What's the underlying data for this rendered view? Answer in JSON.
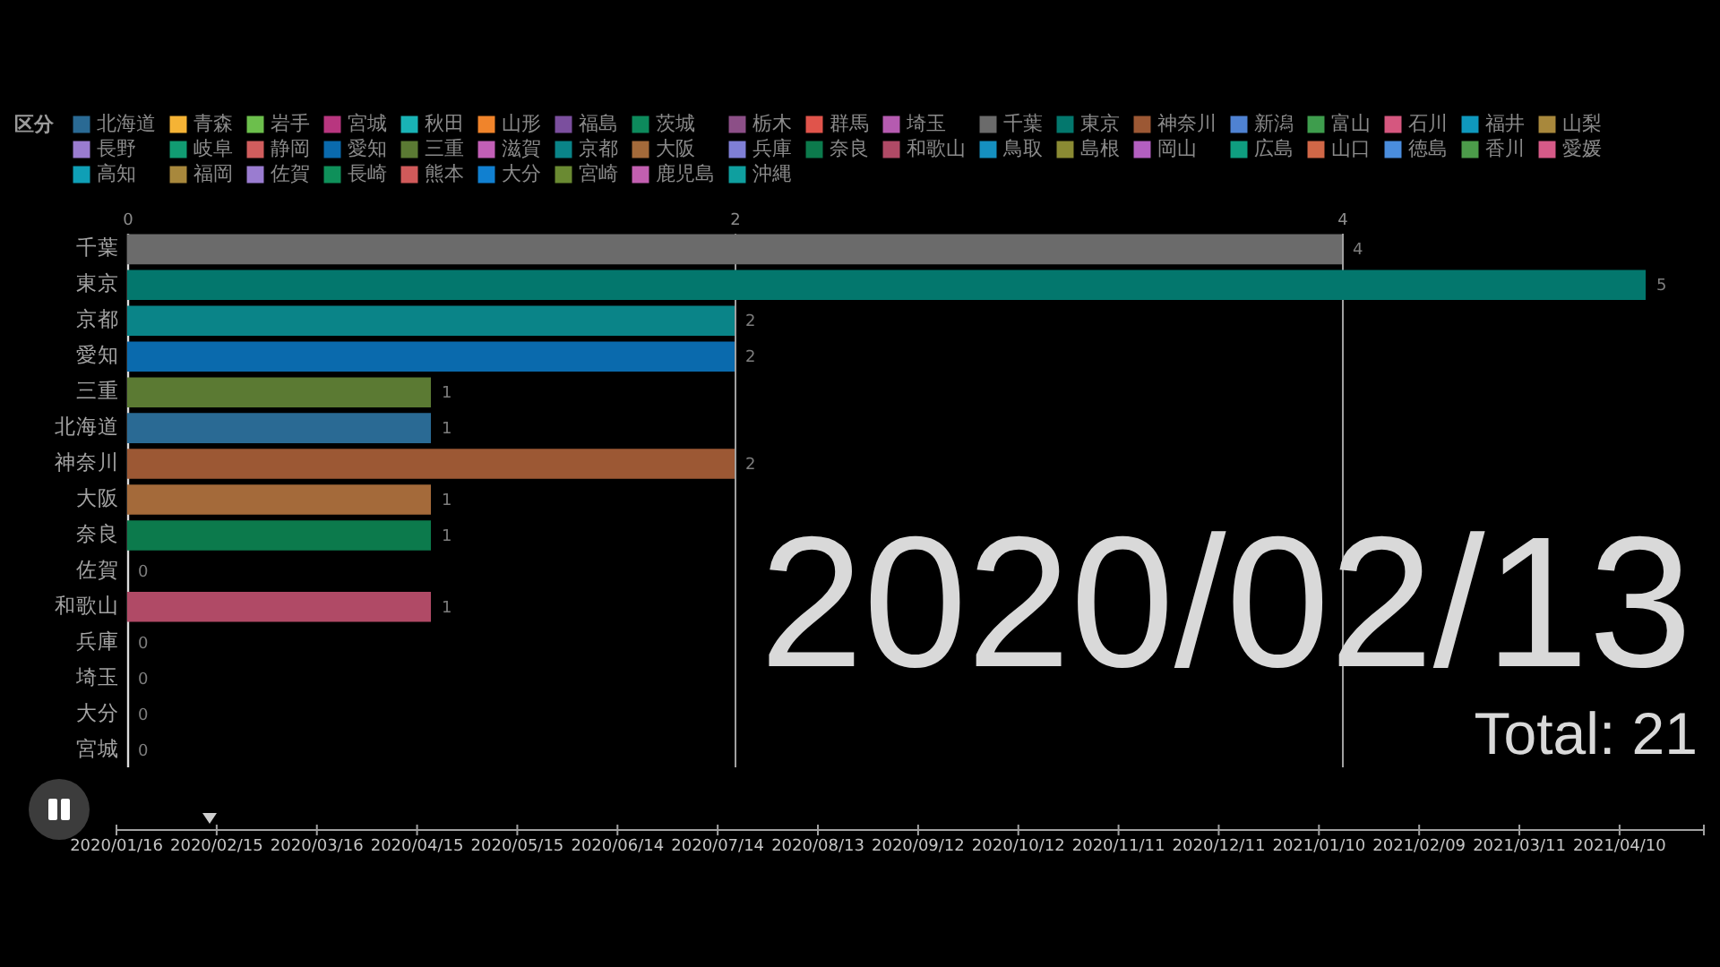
{
  "chart_data": [
    {
      "type": "bar",
      "orientation": "horizontal",
      "legend_title": "区分",
      "legend": "top",
      "grid": "x",
      "data_labels": true,
      "categories": [
        "千葉",
        "東京",
        "京都",
        "愛知",
        "三重",
        "北海道",
        "神奈川",
        "大阪",
        "奈良",
        "佐賀",
        "和歌山",
        "兵庫",
        "埼玉",
        "大分",
        "宮城"
      ],
      "xlim": [
        0,
        5
      ],
      "xticks": [
        0,
        2,
        4
      ],
      "annotations": [
        "2020/02/13",
        "Total: 21"
      ],
      "series": [
        {
          "name": "北海道",
          "color": "#2a6a94",
          "values": [
            null,
            null,
            null,
            null,
            null,
            1,
            null,
            null,
            null,
            null,
            null,
            null,
            null,
            null,
            null
          ]
        },
        {
          "name": "青森",
          "color": "#f5b335",
          "values": [
            null,
            null,
            null,
            null,
            null,
            null,
            null,
            null,
            null,
            null,
            null,
            null,
            null,
            null,
            null
          ]
        },
        {
          "name": "岩手",
          "color": "#6cbf4c",
          "values": [
            null,
            null,
            null,
            null,
            null,
            null,
            null,
            null,
            null,
            null,
            null,
            null,
            null,
            null,
            null
          ]
        },
        {
          "name": "宮城",
          "color": "#b8367f",
          "values": [
            null,
            null,
            null,
            null,
            null,
            null,
            null,
            null,
            null,
            null,
            null,
            null,
            null,
            null,
            0
          ]
        },
        {
          "name": "秋田",
          "color": "#19b3b5",
          "values": [
            null,
            null,
            null,
            null,
            null,
            null,
            null,
            null,
            null,
            null,
            null,
            null,
            null,
            null,
            null
          ]
        },
        {
          "name": "山形",
          "color": "#f0842b",
          "values": [
            null,
            null,
            null,
            null,
            null,
            null,
            null,
            null,
            null,
            null,
            null,
            null,
            null,
            null,
            null
          ]
        },
        {
          "name": "福島",
          "color": "#7b4f9e",
          "values": [
            null,
            null,
            null,
            null,
            null,
            null,
            null,
            null,
            null,
            null,
            null,
            null,
            null,
            null,
            null
          ]
        },
        {
          "name": "茨城",
          "color": "#0d8a5c",
          "values": [
            null,
            null,
            null,
            null,
            null,
            null,
            null,
            null,
            null,
            null,
            null,
            null,
            null,
            null,
            null
          ]
        },
        {
          "name": "栃木",
          "color": "#8c4f87",
          "values": [
            null,
            null,
            null,
            null,
            null,
            null,
            null,
            null,
            null,
            null,
            null,
            null,
            null,
            null,
            null
          ]
        },
        {
          "name": "群馬",
          "color": "#e0544b",
          "values": [
            null,
            null,
            null,
            null,
            null,
            null,
            null,
            null,
            null,
            null,
            null,
            null,
            null,
            null,
            null
          ]
        },
        {
          "name": "埼玉",
          "color": "#b55bb0",
          "values": [
            null,
            null,
            null,
            null,
            null,
            null,
            null,
            null,
            null,
            null,
            null,
            null,
            0,
            null,
            null
          ]
        },
        {
          "name": "千葉",
          "color": "#6b6b6b",
          "values": [
            4,
            null,
            null,
            null,
            null,
            null,
            null,
            null,
            null,
            null,
            null,
            null,
            null,
            null,
            null
          ]
        },
        {
          "name": "東京",
          "color": "#03776d",
          "values": [
            null,
            5,
            null,
            null,
            null,
            null,
            null,
            null,
            null,
            null,
            null,
            null,
            null,
            null,
            null
          ]
        },
        {
          "name": "神奈川",
          "color": "#9c5834",
          "values": [
            null,
            null,
            null,
            null,
            null,
            null,
            2,
            null,
            null,
            null,
            null,
            null,
            null,
            null,
            null
          ]
        },
        {
          "name": "新潟",
          "color": "#4f82d2",
          "values": [
            null,
            null,
            null,
            null,
            null,
            null,
            null,
            null,
            null,
            null,
            null,
            null,
            null,
            null,
            null
          ]
        },
        {
          "name": "富山",
          "color": "#3e9d4d",
          "values": [
            null,
            null,
            null,
            null,
            null,
            null,
            null,
            null,
            null,
            null,
            null,
            null,
            null,
            null,
            null
          ]
        },
        {
          "name": "石川",
          "color": "#d5577f",
          "values": [
            null,
            null,
            null,
            null,
            null,
            null,
            null,
            null,
            null,
            null,
            null,
            null,
            null,
            null,
            null
          ]
        },
        {
          "name": "福井",
          "color": "#0f98bd",
          "values": [
            null,
            null,
            null,
            null,
            null,
            null,
            null,
            null,
            null,
            null,
            null,
            null,
            null,
            null,
            null
          ]
        },
        {
          "name": "山梨",
          "color": "#a8883c",
          "values": [
            null,
            null,
            null,
            null,
            null,
            null,
            null,
            null,
            null,
            null,
            null,
            null,
            null,
            null,
            null
          ]
        },
        {
          "name": "長野",
          "color": "#9a7cd0",
          "values": [
            null,
            null,
            null,
            null,
            null,
            null,
            null,
            null,
            null,
            null,
            null,
            null,
            null,
            null,
            null
          ]
        },
        {
          "name": "岐阜",
          "color": "#119c72",
          "values": [
            null,
            null,
            null,
            null,
            null,
            null,
            null,
            null,
            null,
            null,
            null,
            null,
            null,
            null,
            null
          ]
        },
        {
          "name": "静岡",
          "color": "#d05d5d",
          "values": [
            null,
            null,
            null,
            null,
            null,
            null,
            null,
            null,
            null,
            null,
            null,
            null,
            null,
            null,
            null
          ]
        },
        {
          "name": "愛知",
          "color": "#0a6aad",
          "values": [
            null,
            null,
            null,
            2,
            null,
            null,
            null,
            null,
            null,
            null,
            null,
            null,
            null,
            null,
            null
          ]
        },
        {
          "name": "三重",
          "color": "#5b7a33",
          "values": [
            null,
            null,
            null,
            null,
            1,
            null,
            null,
            null,
            null,
            null,
            null,
            null,
            null,
            null,
            null
          ]
        },
        {
          "name": "滋賀",
          "color": "#c25fb6",
          "values": [
            null,
            null,
            null,
            null,
            null,
            null,
            null,
            null,
            null,
            null,
            null,
            null,
            null,
            null,
            null
          ]
        },
        {
          "name": "京都",
          "color": "#0a8488",
          "values": [
            null,
            null,
            2,
            null,
            null,
            null,
            null,
            null,
            null,
            null,
            null,
            null,
            null,
            null,
            null
          ]
        },
        {
          "name": "大阪",
          "color": "#a46a3a",
          "values": [
            null,
            null,
            null,
            null,
            null,
            null,
            null,
            1,
            null,
            null,
            null,
            null,
            null,
            null,
            null
          ]
        },
        {
          "name": "兵庫",
          "color": "#7f7fd6",
          "values": [
            null,
            null,
            null,
            null,
            null,
            null,
            null,
            null,
            null,
            null,
            null,
            0,
            null,
            null,
            null
          ]
        },
        {
          "name": "奈良",
          "color": "#0c7a4c",
          "values": [
            null,
            null,
            null,
            null,
            null,
            null,
            null,
            null,
            1,
            null,
            null,
            null,
            null,
            null,
            null
          ]
        },
        {
          "name": "和歌山",
          "color": "#b04a66",
          "values": [
            null,
            null,
            null,
            null,
            null,
            null,
            null,
            null,
            null,
            null,
            1,
            null,
            null,
            null,
            null
          ]
        },
        {
          "name": "鳥取",
          "color": "#1590c0",
          "values": [
            null,
            null,
            null,
            null,
            null,
            null,
            null,
            null,
            null,
            null,
            null,
            null,
            null,
            null,
            null
          ]
        },
        {
          "name": "島根",
          "color": "#8a8a33",
          "values": [
            null,
            null,
            null,
            null,
            null,
            null,
            null,
            null,
            null,
            null,
            null,
            null,
            null,
            null,
            null
          ]
        },
        {
          "name": "岡山",
          "color": "#b35fc0",
          "values": [
            null,
            null,
            null,
            null,
            null,
            null,
            null,
            null,
            null,
            null,
            null,
            null,
            null,
            null,
            null
          ]
        },
        {
          "name": "広島",
          "color": "#0f9e80",
          "values": [
            null,
            null,
            null,
            null,
            null,
            null,
            null,
            null,
            null,
            null,
            null,
            null,
            null,
            null,
            null
          ]
        },
        {
          "name": "山口",
          "color": "#d06747",
          "values": [
            null,
            null,
            null,
            null,
            null,
            null,
            null,
            null,
            null,
            null,
            null,
            null,
            null,
            null,
            null
          ]
        },
        {
          "name": "徳島",
          "color": "#4a8ddd",
          "values": [
            null,
            null,
            null,
            null,
            null,
            null,
            null,
            null,
            null,
            null,
            null,
            null,
            null,
            null,
            null
          ]
        },
        {
          "name": "香川",
          "color": "#4c9c4a",
          "values": [
            null,
            null,
            null,
            null,
            null,
            null,
            null,
            null,
            null,
            null,
            null,
            null,
            null,
            null,
            null
          ]
        },
        {
          "name": "愛媛",
          "color": "#d65a88",
          "values": [
            null,
            null,
            null,
            null,
            null,
            null,
            null,
            null,
            null,
            null,
            null,
            null,
            null,
            null,
            null
          ]
        },
        {
          "name": "高知",
          "color": "#0f9fb6",
          "values": [
            null,
            null,
            null,
            null,
            null,
            null,
            null,
            null,
            null,
            null,
            null,
            null,
            null,
            null,
            null
          ]
        },
        {
          "name": "福岡",
          "color": "#a8883c",
          "values": [
            null,
            null,
            null,
            null,
            null,
            null,
            null,
            null,
            null,
            null,
            null,
            null,
            null,
            null,
            null
          ]
        },
        {
          "name": "佐賀",
          "color": "#9a7cd0",
          "values": [
            null,
            null,
            null,
            null,
            null,
            null,
            null,
            null,
            null,
            0,
            null,
            null,
            null,
            null,
            null
          ]
        },
        {
          "name": "長崎",
          "color": "#0f905a",
          "values": [
            null,
            null,
            null,
            null,
            null,
            null,
            null,
            null,
            null,
            null,
            null,
            null,
            null,
            null,
            null
          ]
        },
        {
          "name": "熊本",
          "color": "#d05a5a",
          "values": [
            null,
            null,
            null,
            null,
            null,
            null,
            null,
            null,
            null,
            null,
            null,
            null,
            null,
            null,
            null
          ]
        },
        {
          "name": "大分",
          "color": "#1180d0",
          "values": [
            null,
            null,
            null,
            null,
            null,
            null,
            null,
            null,
            null,
            null,
            null,
            null,
            null,
            0,
            null
          ]
        },
        {
          "name": "宮崎",
          "color": "#6a8a32",
          "values": [
            null,
            null,
            null,
            null,
            null,
            null,
            null,
            null,
            null,
            null,
            null,
            null,
            null,
            null,
            null
          ]
        },
        {
          "name": "鹿児島",
          "color": "#c25fb0",
          "values": [
            null,
            null,
            null,
            null,
            null,
            null,
            null,
            null,
            null,
            null,
            null,
            null,
            null,
            null,
            null
          ]
        },
        {
          "name": "沖縄",
          "color": "#0f9f9f",
          "values": [
            null,
            null,
            null,
            null,
            null,
            null,
            null,
            null,
            null,
            null,
            null,
            null,
            null,
            null,
            null
          ]
        }
      ]
    },
    {
      "type": "other",
      "annotations": [
        "2020/01/16",
        "2020/02/15",
        "2020/03/16",
        "2020/04/15",
        "2020/05/15",
        "2020/06/14",
        "2020/07/14",
        "2020/08/13",
        "2020/09/12",
        "2020/10/12",
        "2020/11/11",
        "2020/12/11",
        "2021/01/10",
        "2021/02/09",
        "2021/03/11",
        "2021/04/10"
      ]
    }
  ]
}
